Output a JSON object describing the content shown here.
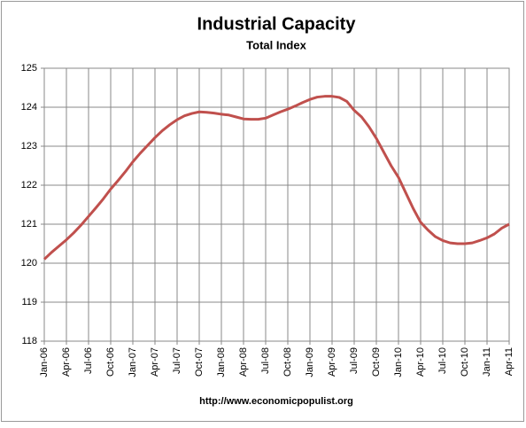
{
  "chart_data": {
    "type": "line",
    "title": "Industrial Capacity",
    "subtitle": "Total Index",
    "footer": "http://www.economicpopulist.org",
    "categories": [
      "Jan-06",
      null,
      null,
      "Apr-06",
      null,
      null,
      "Jul-06",
      null,
      null,
      "Oct-06",
      null,
      null,
      "Jan-07",
      null,
      null,
      "Apr-07",
      null,
      null,
      "Jul-07",
      null,
      null,
      "Oct-07",
      null,
      null,
      "Jan-08",
      null,
      null,
      "Apr-08",
      null,
      null,
      "Jul-08",
      null,
      null,
      "Oct-08",
      null,
      null,
      "Jan-09",
      null,
      null,
      "Apr-09",
      null,
      null,
      "Jul-09",
      null,
      null,
      "Oct-09",
      null,
      null,
      "Jan-10",
      null,
      null,
      "Apr-10",
      null,
      null,
      "Jul-10",
      null,
      null,
      "Oct-10",
      null,
      null,
      "Jan-11",
      null,
      null,
      "Apr-11"
    ],
    "series": [
      {
        "name": "Industrial Capacity",
        "color": "#c0504d",
        "values": [
          120.1,
          120.28,
          120.44,
          120.6,
          120.78,
          120.98,
          121.2,
          121.42,
          121.65,
          121.9,
          122.12,
          122.35,
          122.6,
          122.82,
          123.02,
          123.22,
          123.4,
          123.55,
          123.68,
          123.78,
          123.84,
          123.88,
          123.87,
          123.85,
          123.82,
          123.8,
          123.75,
          123.7,
          123.69,
          123.69,
          123.72,
          123.8,
          123.88,
          123.95,
          124.03,
          124.12,
          124.2,
          124.26,
          124.28,
          124.28,
          124.25,
          124.15,
          123.92,
          123.75,
          123.5,
          123.2,
          122.85,
          122.5,
          122.2,
          121.8,
          121.4,
          121.05,
          120.85,
          120.68,
          120.58,
          120.52,
          120.5,
          120.5,
          120.52,
          120.58,
          120.65,
          120.75,
          120.9,
          121.0
        ]
      }
    ],
    "ylim": [
      118,
      125
    ],
    "yticks": [
      118,
      119,
      120,
      121,
      122,
      123,
      124,
      125
    ],
    "grid": true
  }
}
